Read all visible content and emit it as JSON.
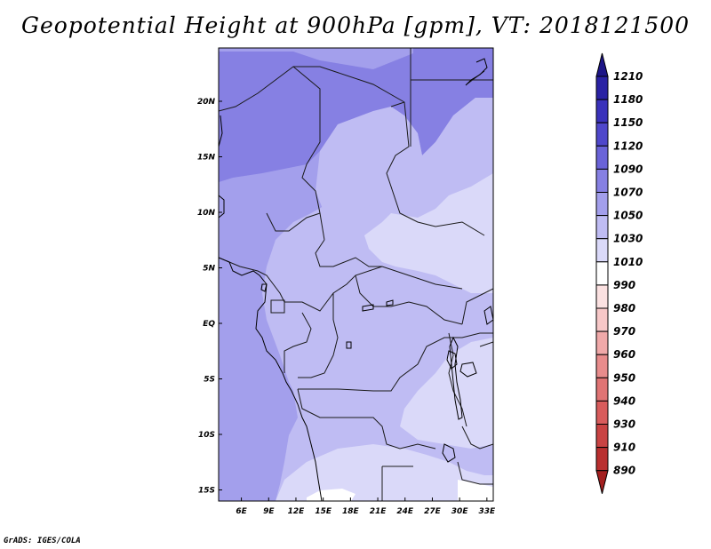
{
  "title": "Geopotential Height at 900hPa [gpm], VT: 2018121500",
  "credit": "GrADS: IGES/COLA",
  "colors": {
    "map_frame": "#000000",
    "border_line": "#1a1a1a"
  },
  "chart_data": {
    "type": "heatmap",
    "title": "Geopotential Height at 900hPa [gpm], VT: 2018121500",
    "variable": "Geopotential Height",
    "level": "900hPa",
    "units": "gpm",
    "valid_time": "2018121500",
    "x_ticks": [
      "6E",
      "9E",
      "12E",
      "15E",
      "18E",
      "21E",
      "24E",
      "27E",
      "30E",
      "33E"
    ],
    "y_ticks": [
      "20N",
      "15N",
      "10N",
      "5N",
      "EQ",
      "5S",
      "10S",
      "15S"
    ],
    "xlim": [
      3.5,
      33.7
    ],
    "ylim": [
      -16.0,
      24.8
    ],
    "levels": [
      1210,
      1180,
      1150,
      1120,
      1090,
      1070,
      1050,
      1030,
      1010,
      990,
      980,
      970,
      960,
      950,
      940,
      930,
      910,
      890
    ],
    "colorbar": [
      {
        "color": "#1d1587"
      },
      {
        "color": "#2a22a4"
      },
      {
        "color": "#3a32bb"
      },
      {
        "color": "#4f47cb"
      },
      {
        "color": "#6a63d8"
      },
      {
        "color": "#8680e3"
      },
      {
        "color": "#a39fec"
      },
      {
        "color": "#bfbcf3"
      },
      {
        "color": "#dad9f9"
      },
      {
        "color": "#ffffff"
      },
      {
        "color": "#fbe1e1"
      },
      {
        "color": "#f7c8c8"
      },
      {
        "color": "#f0a9a9"
      },
      {
        "color": "#e88c8c"
      },
      {
        "color": "#e07474"
      },
      {
        "color": "#d85c5c"
      },
      {
        "color": "#c94343"
      },
      {
        "color": "#b92f2f"
      },
      {
        "color": "#a31f1f"
      }
    ],
    "dominant_fields": [
      {
        "region": "central map",
        "range": "1030-1050"
      },
      {
        "region": "western coast / northwest",
        "range": "1050-1070"
      },
      {
        "region": "north (Libya/Egypt)",
        "range": "1070-1090"
      },
      {
        "region": "east-central / south",
        "range": "1010-1030"
      }
    ]
  }
}
